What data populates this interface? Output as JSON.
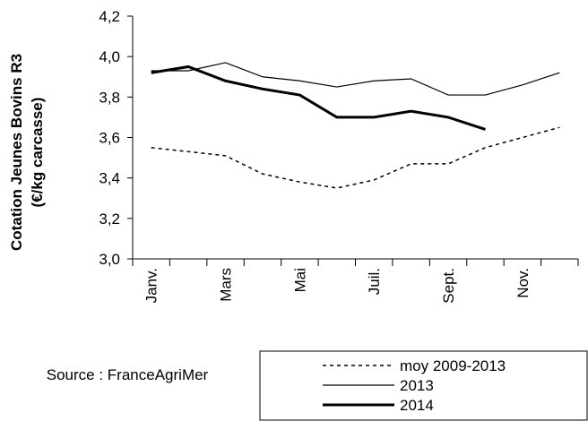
{
  "chart_data": {
    "type": "line",
    "ylabel": [
      "Cotation Jeunes Bovins R3",
      "(€/kg carcasse)"
    ],
    "source": "Source : FranceAgriMer",
    "categories": [
      "Janv.",
      null,
      "Mars",
      null,
      "Mai",
      null,
      "Juil.",
      null,
      "Sept.",
      null,
      "Nov.",
      null
    ],
    "ylim": [
      3.0,
      4.2
    ],
    "yticks": [
      {
        "value": 3.0,
        "label": "3,0"
      },
      {
        "value": 3.2,
        "label": "3,2"
      },
      {
        "value": 3.4,
        "label": "3,4"
      },
      {
        "value": 3.6,
        "label": "3,6"
      },
      {
        "value": 3.8,
        "label": "3,8"
      },
      {
        "value": 4.0,
        "label": "4,0"
      },
      {
        "value": 4.2,
        "label": "4,2"
      }
    ],
    "series": [
      {
        "name": "moy 2009-2013",
        "color": "#000000",
        "dashed": true,
        "width": 1.5,
        "values": [
          3.55,
          3.53,
          3.51,
          3.42,
          3.38,
          3.35,
          3.39,
          3.47,
          3.47,
          3.55,
          3.6,
          3.65
        ]
      },
      {
        "name": "2013",
        "color": "#000000",
        "dashed": false,
        "width": 1.2,
        "values": [
          3.93,
          3.93,
          3.97,
          3.9,
          3.88,
          3.85,
          3.88,
          3.89,
          3.81,
          3.81,
          3.86,
          3.92
        ]
      },
      {
        "name": "2014",
        "color": "#000000",
        "dashed": false,
        "width": 3,
        "values": [
          3.92,
          3.95,
          3.88,
          3.84,
          3.81,
          3.7,
          3.7,
          3.73,
          3.7,
          3.64,
          null,
          null
        ]
      }
    ]
  }
}
